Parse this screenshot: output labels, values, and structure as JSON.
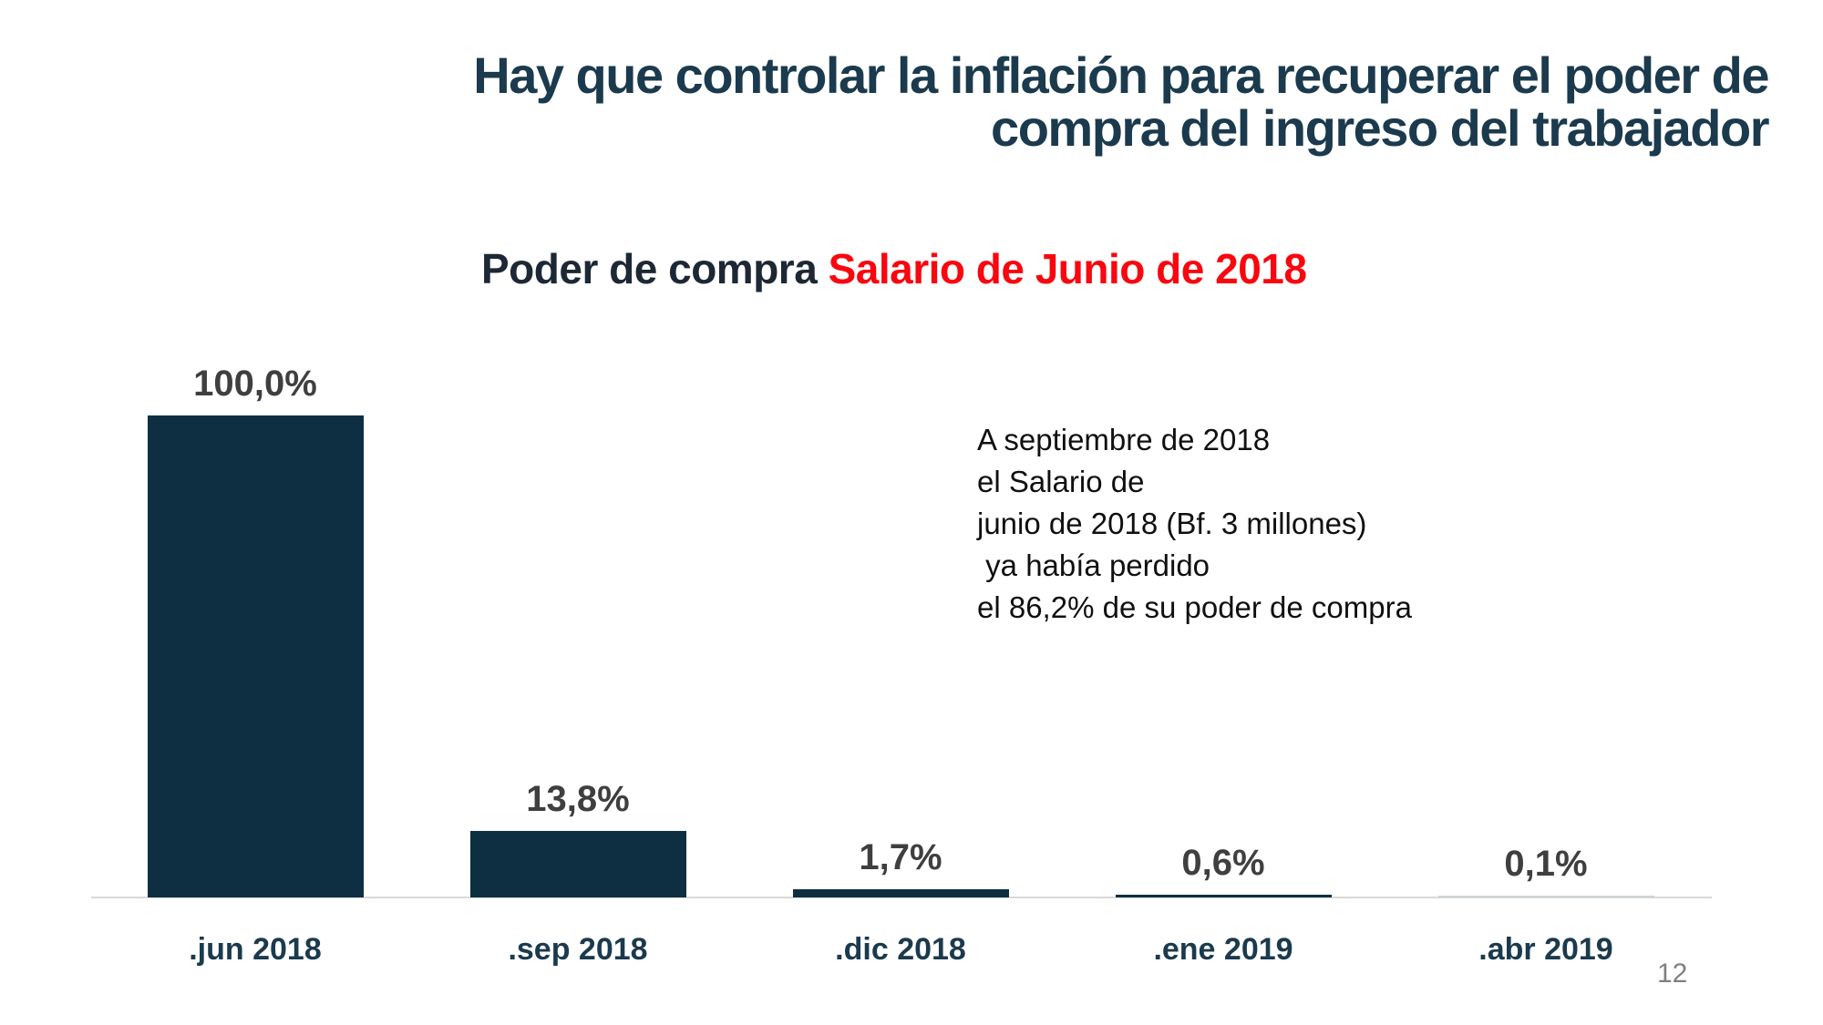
{
  "slide": {
    "title": {
      "line1": "Hay que controlar la inflación para recuperar el poder de",
      "line2": "compra del ingreso del trabajador"
    },
    "subtitle": {
      "prefix": "Poder de compra ",
      "highlight": "Salario de Junio de 2018"
    },
    "annotation": {
      "lines": [
        "A septiembre de 2018",
        "el Salario de",
        "junio de 2018 (Bf. 3 millones)",
        " ya había perdido",
        "el 86,2% de su poder de compra"
      ]
    },
    "page_number": "12",
    "colors": {
      "title": "#1B3A4D",
      "subtitle_text": "#1D2834",
      "subtitle_highlight": "#F9060F",
      "bar": "#0E2F42",
      "bar_faint": "#CDD4D8",
      "value_label": "#3F3F3F",
      "axis_label": "#1B3A4D",
      "baseline": "#D9D9D9",
      "annotation_text": "#101010",
      "page_number": "#808080"
    }
  },
  "chart_data": {
    "type": "bar",
    "title": "Poder de compra Salario de Junio de 2018",
    "categories": [
      ".jun 2018",
      ".sep 2018",
      ".dic 2018",
      ".ene 2019",
      ".abr 2019"
    ],
    "values": [
      100.0,
      13.8,
      1.7,
      0.6,
      0.1
    ],
    "value_labels": [
      "100,0%",
      "13,8%",
      "1,7%",
      "0,6%",
      "0,1%"
    ],
    "xlabel": "",
    "ylabel": "",
    "ylim": [
      0,
      100
    ],
    "grid": false,
    "legend": false
  }
}
